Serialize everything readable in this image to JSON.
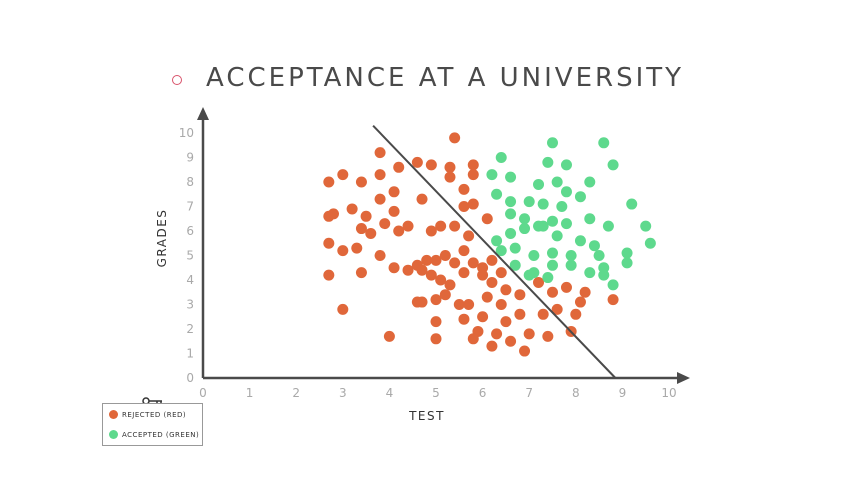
{
  "slide": {
    "title": "ACCEPTANCE AT A UNIVERSITY",
    "bullet_color": "#d9536b"
  },
  "legend": {
    "icon": "key-icon",
    "items": [
      {
        "label": "REJECTED (RED)",
        "color": "#e0673a"
      },
      {
        "label": "ACCEPTED (GREEN)",
        "color": "#5ed98d"
      }
    ]
  },
  "chart_data": {
    "type": "scatter",
    "xlabel": "TEST",
    "ylabel": "GRADES",
    "xlim": [
      0,
      10
    ],
    "ylim": [
      0,
      10
    ],
    "xticks": [
      "0",
      "1",
      "2",
      "3",
      "4",
      "5",
      "6",
      "7",
      "8",
      "9",
      "10"
    ],
    "yticks": [
      "0",
      "1",
      "2",
      "3",
      "4",
      "5",
      "6",
      "7",
      "8",
      "9",
      "10"
    ],
    "grid": false,
    "boundary_line": {
      "x": [
        3.65,
        8.85
      ],
      "y": [
        10.3,
        0
      ]
    },
    "series": [
      {
        "name": "REJECTED (RED)",
        "color": "#e0673a",
        "points": [
          [
            5.4,
            9.8
          ],
          [
            3.8,
            9.2
          ],
          [
            4.9,
            8.7
          ],
          [
            5.3,
            8.6
          ],
          [
            5.8,
            8.7
          ],
          [
            4.2,
            8.6
          ],
          [
            4.6,
            8.8
          ],
          [
            2.7,
            8.0
          ],
          [
            3.0,
            8.3
          ],
          [
            3.4,
            8.0
          ],
          [
            3.8,
            8.3
          ],
          [
            4.1,
            7.6
          ],
          [
            5.3,
            8.2
          ],
          [
            5.6,
            7.7
          ],
          [
            5.8,
            8.3
          ],
          [
            3.8,
            7.3
          ],
          [
            4.7,
            7.3
          ],
          [
            5.8,
            7.1
          ],
          [
            5.6,
            7.0
          ],
          [
            6.1,
            6.5
          ],
          [
            2.7,
            6.6
          ],
          [
            2.8,
            6.7
          ],
          [
            3.2,
            6.9
          ],
          [
            3.5,
            6.6
          ],
          [
            4.1,
            6.8
          ],
          [
            3.4,
            6.1
          ],
          [
            3.6,
            5.9
          ],
          [
            3.9,
            6.3
          ],
          [
            4.2,
            6.0
          ],
          [
            4.4,
            6.2
          ],
          [
            4.9,
            6.0
          ],
          [
            5.1,
            6.2
          ],
          [
            5.4,
            6.2
          ],
          [
            5.7,
            5.8
          ],
          [
            5.6,
            5.2
          ],
          [
            2.7,
            5.5
          ],
          [
            3.0,
            5.2
          ],
          [
            3.3,
            5.3
          ],
          [
            3.8,
            5.0
          ],
          [
            4.1,
            4.5
          ],
          [
            4.4,
            4.4
          ],
          [
            4.6,
            4.6
          ],
          [
            4.8,
            4.8
          ],
          [
            5.0,
            4.8
          ],
          [
            5.2,
            5.0
          ],
          [
            5.4,
            4.7
          ],
          [
            5.6,
            4.3
          ],
          [
            5.8,
            4.7
          ],
          [
            6.0,
            4.5
          ],
          [
            6.2,
            4.8
          ],
          [
            6.4,
            4.3
          ],
          [
            2.7,
            4.2
          ],
          [
            3.4,
            4.3
          ],
          [
            4.7,
            4.4
          ],
          [
            4.9,
            4.2
          ],
          [
            5.1,
            4.0
          ],
          [
            5.3,
            3.8
          ],
          [
            6.0,
            4.2
          ],
          [
            6.2,
            3.9
          ],
          [
            6.5,
            3.6
          ],
          [
            6.8,
            3.4
          ],
          [
            7.2,
            3.9
          ],
          [
            7.5,
            3.5
          ],
          [
            7.8,
            3.7
          ],
          [
            8.2,
            3.5
          ],
          [
            8.1,
            3.1
          ],
          [
            8.8,
            3.2
          ],
          [
            4.7,
            3.1
          ],
          [
            4.6,
            3.1
          ],
          [
            5.0,
            3.2
          ],
          [
            5.2,
            3.4
          ],
          [
            5.5,
            3.0
          ],
          [
            5.7,
            3.0
          ],
          [
            6.1,
            3.3
          ],
          [
            6.4,
            3.0
          ],
          [
            5.6,
            2.4
          ],
          [
            6.0,
            2.5
          ],
          [
            6.5,
            2.3
          ],
          [
            6.8,
            2.6
          ],
          [
            7.3,
            2.6
          ],
          [
            7.6,
            2.8
          ],
          [
            8.0,
            2.6
          ],
          [
            3.0,
            2.8
          ],
          [
            5.0,
            2.3
          ],
          [
            5.9,
            1.9
          ],
          [
            6.3,
            1.8
          ],
          [
            6.6,
            1.5
          ],
          [
            7.0,
            1.8
          ],
          [
            7.4,
            1.7
          ],
          [
            7.9,
            1.9
          ],
          [
            4.0,
            1.7
          ],
          [
            5.0,
            1.6
          ],
          [
            6.2,
            1.3
          ],
          [
            6.9,
            1.1
          ],
          [
            5.8,
            1.6
          ]
        ]
      },
      {
        "name": "ACCEPTED (GREEN)",
        "color": "#5ed98d",
        "points": [
          [
            7.5,
            9.6
          ],
          [
            8.6,
            9.6
          ],
          [
            6.4,
            9.0
          ],
          [
            7.4,
            8.8
          ],
          [
            7.8,
            8.7
          ],
          [
            8.8,
            8.7
          ],
          [
            6.2,
            8.3
          ],
          [
            6.6,
            8.2
          ],
          [
            7.2,
            7.9
          ],
          [
            7.6,
            8.0
          ],
          [
            8.3,
            8.0
          ],
          [
            7.8,
            7.6
          ],
          [
            6.3,
            7.5
          ],
          [
            6.6,
            7.2
          ],
          [
            7.0,
            7.2
          ],
          [
            7.3,
            7.1
          ],
          [
            7.7,
            7.0
          ],
          [
            8.1,
            7.4
          ],
          [
            9.2,
            7.1
          ],
          [
            6.6,
            6.7
          ],
          [
            6.9,
            6.5
          ],
          [
            7.2,
            6.2
          ],
          [
            7.5,
            6.4
          ],
          [
            7.8,
            6.3
          ],
          [
            8.3,
            6.5
          ],
          [
            8.7,
            6.2
          ],
          [
            9.5,
            6.2
          ],
          [
            6.3,
            5.6
          ],
          [
            6.6,
            5.9
          ],
          [
            6.9,
            6.1
          ],
          [
            7.3,
            6.2
          ],
          [
            7.6,
            5.8
          ],
          [
            8.1,
            5.6
          ],
          [
            8.4,
            5.4
          ],
          [
            6.4,
            5.2
          ],
          [
            6.7,
            5.3
          ],
          [
            7.1,
            5.0
          ],
          [
            7.5,
            5.1
          ],
          [
            7.9,
            5.0
          ],
          [
            8.5,
            5.0
          ],
          [
            9.1,
            5.1
          ],
          [
            9.6,
            5.5
          ],
          [
            6.7,
            4.6
          ],
          [
            7.1,
            4.3
          ],
          [
            7.5,
            4.6
          ],
          [
            7.9,
            4.6
          ],
          [
            8.6,
            4.5
          ],
          [
            9.1,
            4.7
          ],
          [
            7.0,
            4.2
          ],
          [
            7.4,
            4.1
          ],
          [
            8.3,
            4.3
          ],
          [
            8.6,
            4.2
          ],
          [
            8.8,
            3.8
          ]
        ]
      }
    ]
  }
}
